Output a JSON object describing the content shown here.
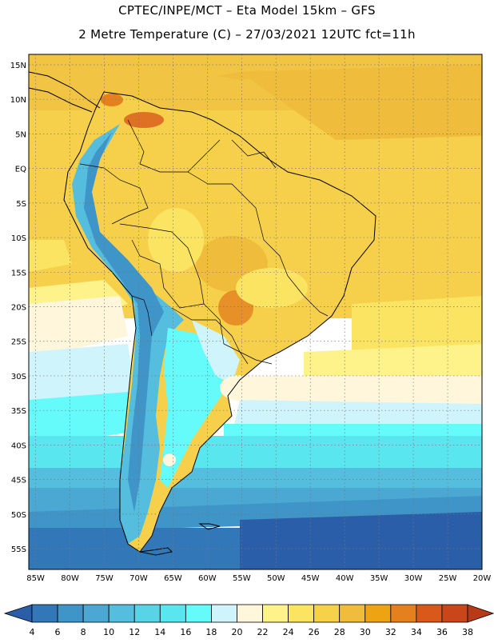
{
  "header": {
    "line1": "CPTEC/INPE/MCT –  Eta Model 15km – GFS",
    "line2": "2 Metre Temperature (C) – 27/03/2021 12UTC fct=11h"
  },
  "map": {
    "lat_labels": [
      "15N",
      "10N",
      "5N",
      "EQ",
      "5S",
      "10S",
      "15S",
      "20S",
      "25S",
      "30S",
      "35S",
      "40S",
      "45S",
      "50S",
      "55S"
    ],
    "lat_values": [
      15,
      10,
      5,
      0,
      -5,
      -10,
      -15,
      -20,
      -25,
      -30,
      -35,
      -40,
      -45,
      -50,
      -55
    ],
    "lon_labels": [
      "85W",
      "80W",
      "75W",
      "70W",
      "65W",
      "60W",
      "55W",
      "50W",
      "45W",
      "40W",
      "35W",
      "30W",
      "25W",
      "20W"
    ],
    "lon_values": [
      -85,
      -80,
      -75,
      -70,
      -65,
      -60,
      -55,
      -50,
      -45,
      -40,
      -35,
      -30,
      -25,
      -20
    ],
    "lon_range": [
      -86,
      -20
    ],
    "lat_range": [
      -58,
      16.5
    ]
  },
  "legend": {
    "ticks": [
      "4",
      "6",
      "8",
      "10",
      "12",
      "14",
      "16",
      "18",
      "20",
      "22",
      "24",
      "26",
      "28",
      "30",
      "32",
      "34",
      "36",
      "38"
    ],
    "colors": [
      "#2b5ea8",
      "#3278b9",
      "#3f94c8",
      "#4aa8d2",
      "#55bede",
      "#58d4e6",
      "#5ae6ee",
      "#66fbfb",
      "#d0f4fb",
      "#fff6dc",
      "#fef28a",
      "#fbe462",
      "#f6d14a",
      "#efbd3b",
      "#eea312",
      "#e4801e",
      "#d8591a",
      "#c8461a",
      "#b83a16"
    ]
  }
}
